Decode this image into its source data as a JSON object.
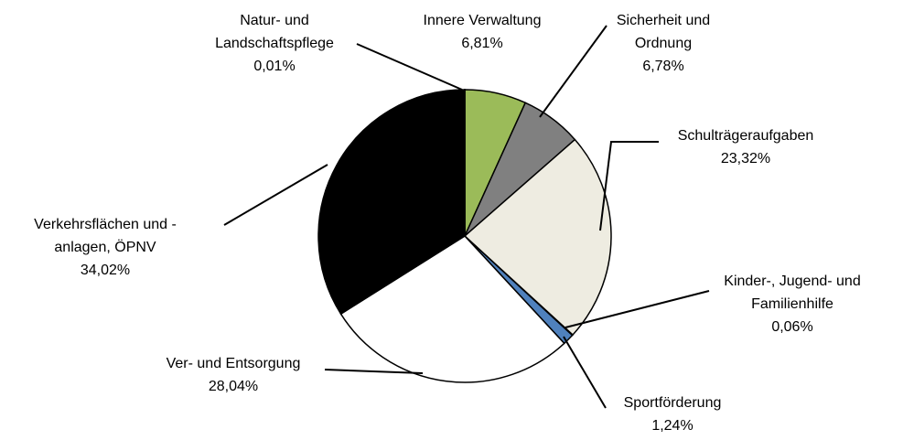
{
  "chart_data": {
    "type": "pie",
    "categories": [
      "Innere Verwaltung",
      "Sicherheit und Ordnung",
      "Schulträgeraufgaben",
      "Kinder-, Jugend- und Familienhilfe",
      "Sportförderung",
      "Ver- und Entsorgung",
      "Verkehrsflächen und - anlagen, ÖPNV",
      "Natur- und Landschaftspflege"
    ],
    "values": [
      6.81,
      6.78,
      23.32,
      0.06,
      1.24,
      28.04,
      34.02,
      0.01
    ],
    "value_labels": [
      "6,81%",
      "6,78%",
      "23,32%",
      "0,06%",
      "1,24%",
      "28,04%",
      "34,02%",
      "0,01%"
    ],
    "colors": [
      "#9bbb59",
      "#808080",
      "#eeece1",
      "#4f81bd",
      "#4f81bd",
      "#ffffff",
      "#000000",
      "#9bbb59"
    ]
  }
}
